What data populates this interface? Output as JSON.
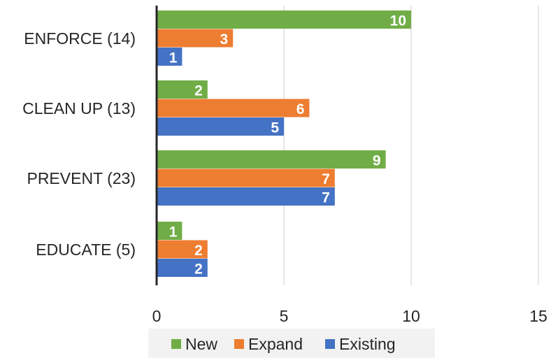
{
  "chart_data": {
    "type": "bar",
    "orientation": "horizontal",
    "categories": [
      "ENFORCE (14)",
      "CLEAN UP (13)",
      "PREVENT (23)",
      "EDUCATE (5)"
    ],
    "series": [
      {
        "name": "New",
        "values": [
          10,
          2,
          9,
          1
        ],
        "color": "#70AD47"
      },
      {
        "name": "Expand",
        "values": [
          3,
          6,
          7,
          2
        ],
        "color": "#ED7D31"
      },
      {
        "name": "Existing",
        "values": [
          1,
          5,
          7,
          2
        ],
        "color": "#4472C4"
      }
    ],
    "xlim": [
      0,
      15
    ],
    "xticks": [
      "0",
      "5",
      "10",
      "15"
    ],
    "grid": true,
    "legend_position": "bottom",
    "data_labels": true
  }
}
